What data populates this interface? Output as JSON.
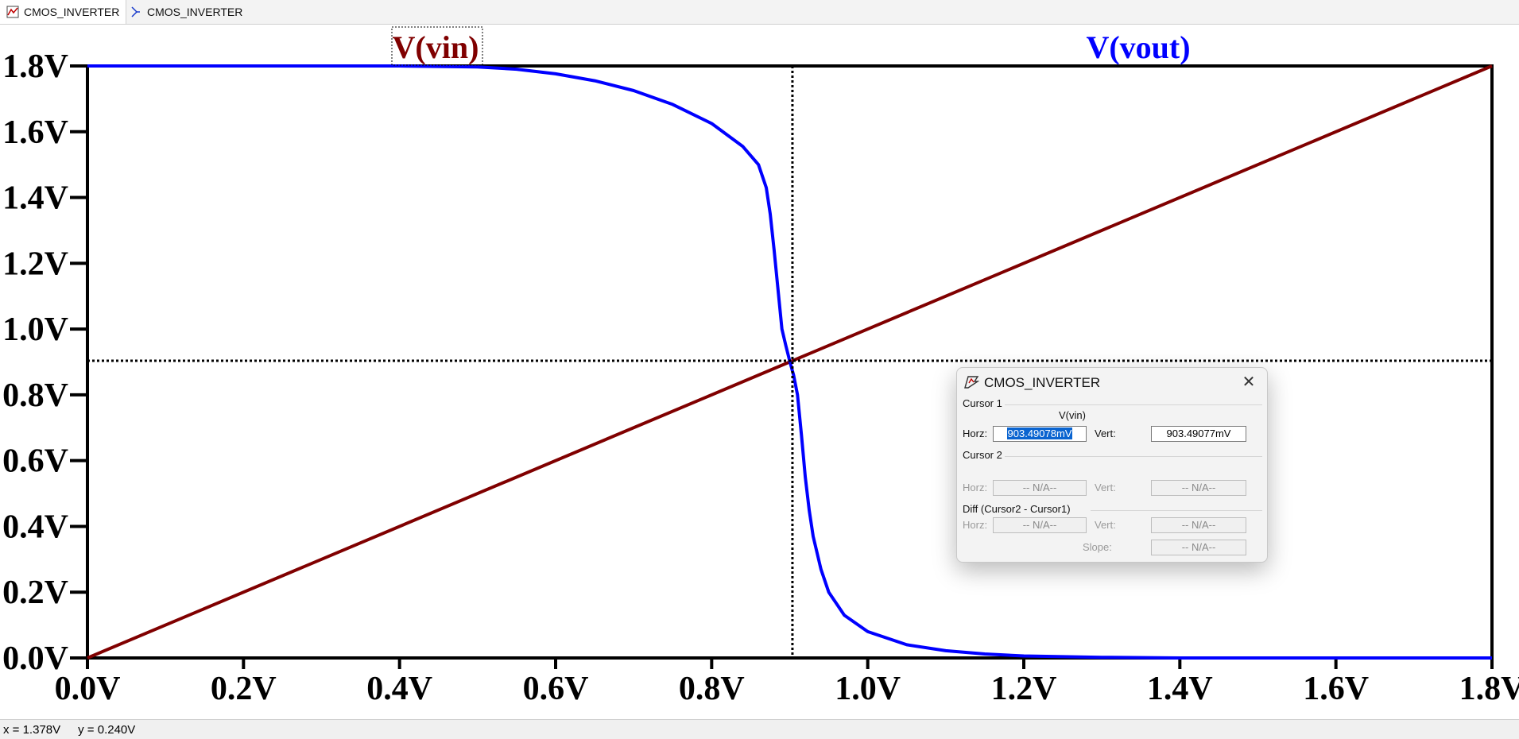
{
  "tabs": [
    {
      "label": "CMOS_INVERTER",
      "icon": "waveform-icon"
    },
    {
      "label": "CMOS_INVERTER",
      "icon": "schematic-icon"
    }
  ],
  "chart_data": {
    "type": "line",
    "title": "",
    "xlabel": "",
    "ylabel": "",
    "xlim": [
      0.0,
      1.8
    ],
    "ylim": [
      0.0,
      1.8
    ],
    "x_ticks": [
      "0.0V",
      "0.2V",
      "0.4V",
      "0.6V",
      "0.8V",
      "1.0V",
      "1.2V",
      "1.4V",
      "1.6V",
      "1.8V"
    ],
    "y_ticks": [
      "0.0V",
      "0.2V",
      "0.4V",
      "0.6V",
      "0.8V",
      "1.0V",
      "1.2V",
      "1.4V",
      "1.6V",
      "1.8V"
    ],
    "grid": false,
    "series": [
      {
        "name": "V(vin)",
        "color": "#800000",
        "x": [
          0.0,
          1.8
        ],
        "y": [
          0.0,
          1.8
        ]
      },
      {
        "name": "V(vout)",
        "color": "#0000ff",
        "x": [
          0.0,
          0.4,
          0.5,
          0.55,
          0.6,
          0.65,
          0.7,
          0.75,
          0.8,
          0.84,
          0.86,
          0.87,
          0.875,
          0.88,
          0.885,
          0.89,
          0.895,
          0.9,
          0.905,
          0.91,
          0.915,
          0.92,
          0.925,
          0.93,
          0.94,
          0.95,
          0.97,
          1.0,
          1.05,
          1.1,
          1.15,
          1.2,
          1.3,
          1.4,
          1.8
        ],
        "y": [
          1.8,
          1.8,
          1.797,
          1.79,
          1.776,
          1.755,
          1.725,
          1.683,
          1.625,
          1.555,
          1.5,
          1.43,
          1.35,
          1.24,
          1.12,
          1.0,
          0.95,
          0.903,
          0.86,
          0.8,
          0.68,
          0.55,
          0.45,
          0.37,
          0.27,
          0.2,
          0.13,
          0.08,
          0.04,
          0.022,
          0.012,
          0.006,
          0.002,
          0.0,
          0.0
        ]
      }
    ],
    "cursor": {
      "x": 0.90349,
      "y": 0.90349
    }
  },
  "cursor_dialog": {
    "title": "CMOS_INVERTER",
    "cursor1_label": "Cursor 1",
    "cursor1_trace": "V(vin)",
    "horz_label": "Horz:",
    "vert_label": "Vert:",
    "cursor1_horz": "903.49078mV",
    "cursor1_vert": "903.49077mV",
    "cursor2_label": "Cursor 2",
    "cursor2_horz": "-- N/A--",
    "cursor2_vert": "-- N/A--",
    "diff_label": "Diff (Cursor2 - Cursor1)",
    "diff_horz": "-- N/A--",
    "diff_vert": "-- N/A--",
    "slope_label": "Slope:",
    "diff_slope": "-- N/A--",
    "close_glyph": "✕"
  },
  "status": {
    "x_readout": "x = 1.378V",
    "y_readout": "y = 0.240V"
  }
}
